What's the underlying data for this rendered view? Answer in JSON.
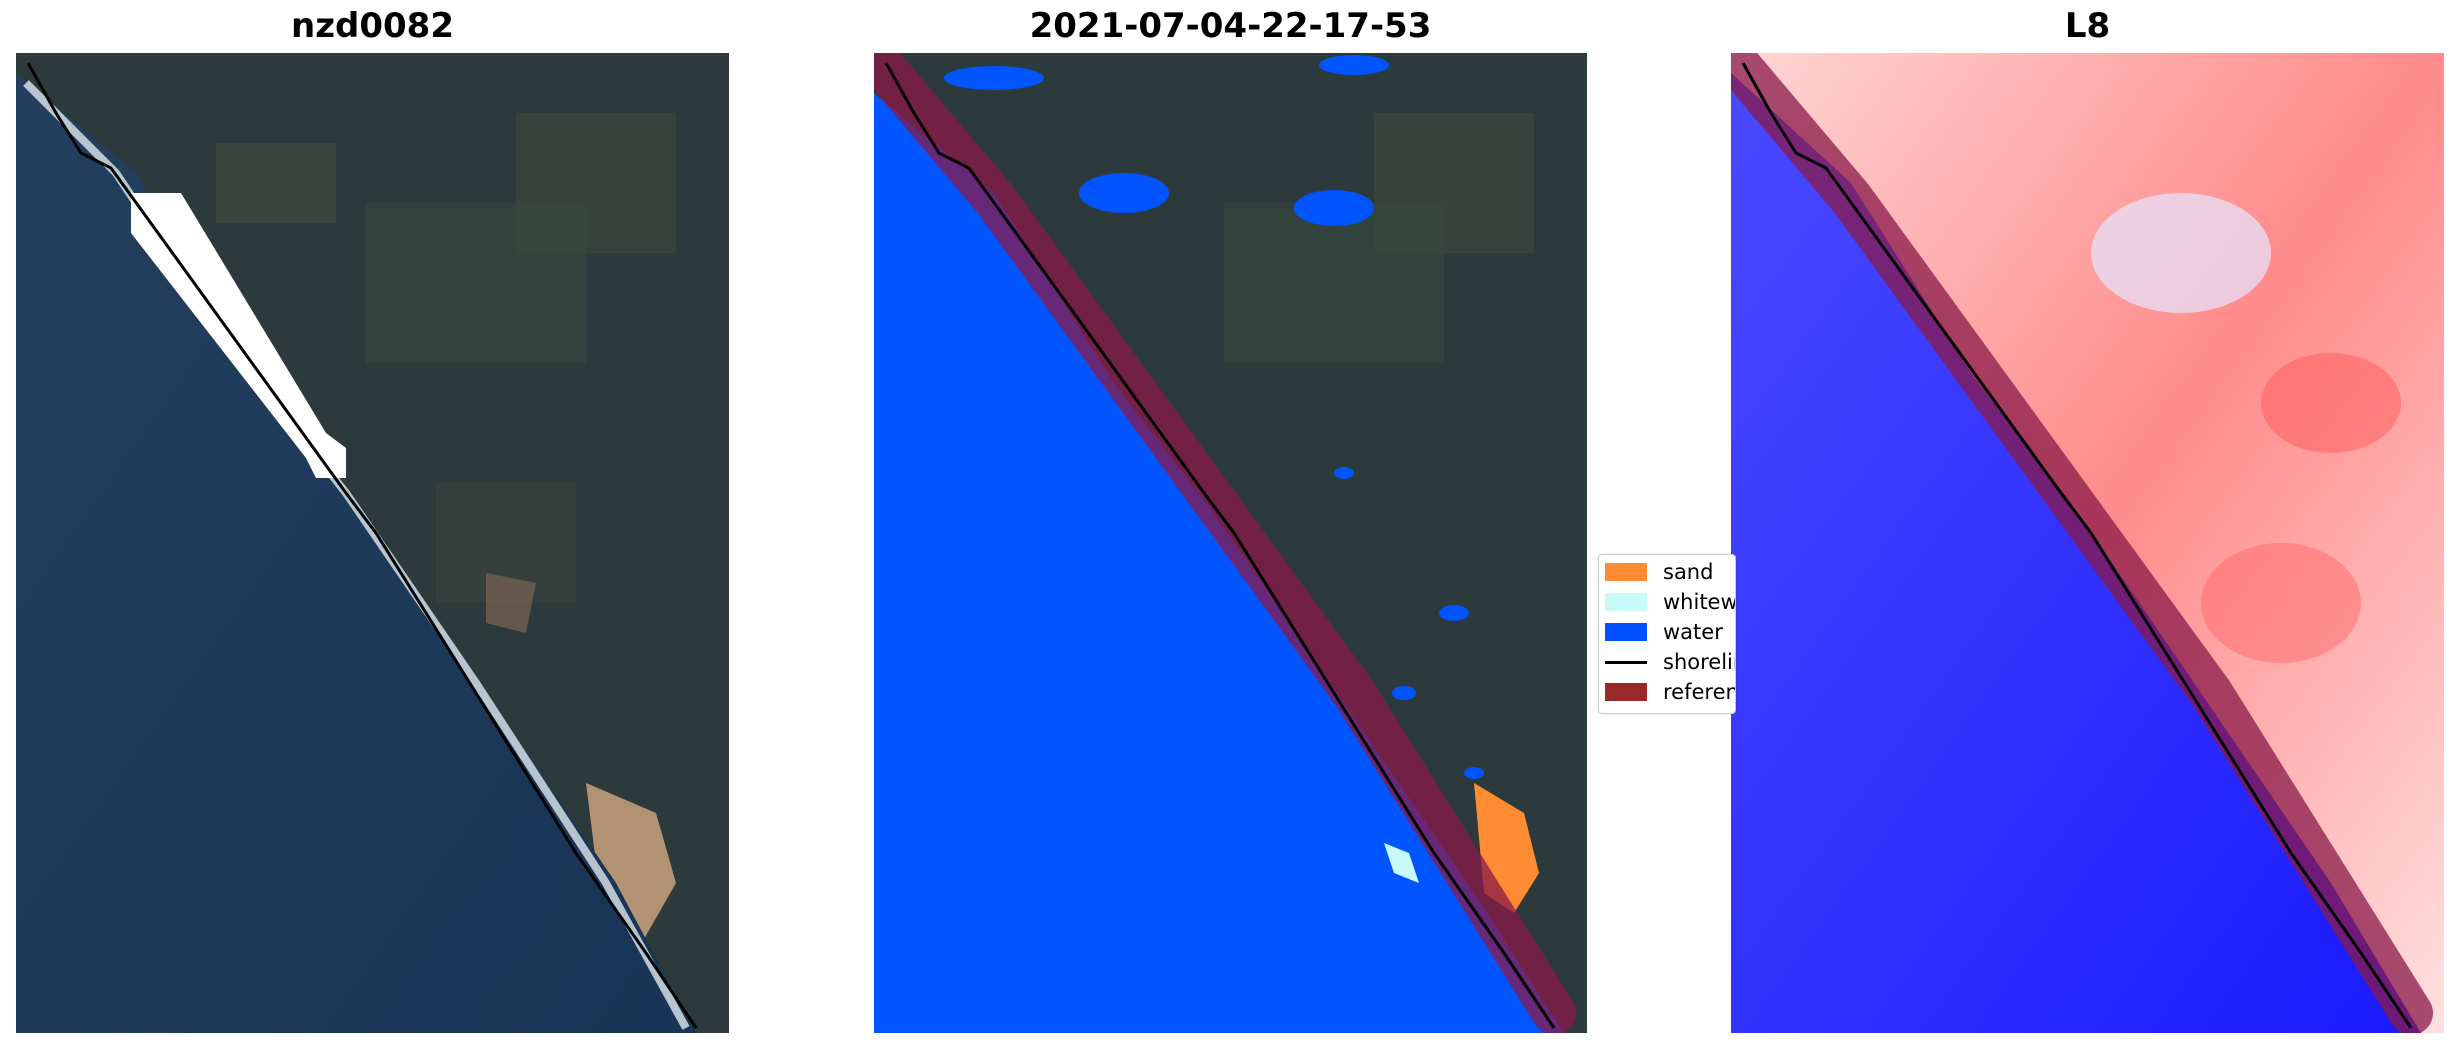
{
  "panels": [
    {
      "title": "nzd0082"
    },
    {
      "title": "2021-07-04-22-17-53"
    },
    {
      "title": "L8"
    }
  ],
  "legend": {
    "items": [
      {
        "label": "sand",
        "color": "#ff8c32"
      },
      {
        "label": "whitewater",
        "color": "#c8fafa"
      },
      {
        "label": "water",
        "color": "#0050ff"
      },
      {
        "label": "shoreline",
        "color": "#000000"
      },
      {
        "label": "reference",
        "color": "#9a2a2a"
      }
    ]
  },
  "colors": {
    "ocean": "#1c3a5c",
    "land": "#2d3a3c",
    "water_class": "#0055ff",
    "reference_buffer": "#8a1a4a",
    "index_negative": "#1a1aff",
    "index_positive": "#ff3a3a"
  }
}
